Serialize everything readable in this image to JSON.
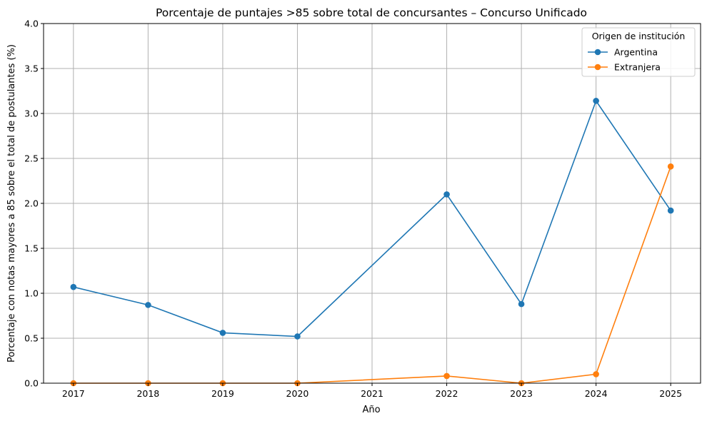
{
  "chart_data": {
    "type": "line",
    "title": "Porcentaje de puntajes >85 sobre total de concursantes – Concurso Unificado",
    "xlabel": "Año",
    "ylabel": "Porcentaje con notas mayores a 85 sobre el total de postulantes (%)",
    "xlim": [
      2016.6,
      2025.4
    ],
    "ylim": [
      0,
      4.0
    ],
    "xticks": [
      "2017",
      "2018",
      "2019",
      "2020",
      "2021",
      "2022",
      "2023",
      "2024",
      "2025"
    ],
    "yticks": [
      "0.0",
      "0.5",
      "1.0",
      "1.5",
      "2.0",
      "2.5",
      "3.0",
      "3.5",
      "4.0"
    ],
    "grid": true,
    "legend": {
      "title": "Origen de institución",
      "position": "top-right"
    },
    "series": [
      {
        "name": "Argentina",
        "color": "#1f77b4",
        "x": [
          2017,
          2018,
          2019,
          2020,
          2022,
          2023,
          2024,
          2025
        ],
        "values": [
          1.07,
          0.87,
          0.56,
          0.52,
          2.1,
          0.88,
          3.14,
          1.92
        ]
      },
      {
        "name": "Extranjera",
        "color": "#ff7f0e",
        "x": [
          2017,
          2018,
          2019,
          2020,
          2022,
          2023,
          2024,
          2025
        ],
        "values": [
          0.0,
          0.0,
          0.0,
          0.0,
          0.08,
          0.0,
          0.1,
          2.41
        ]
      }
    ]
  }
}
